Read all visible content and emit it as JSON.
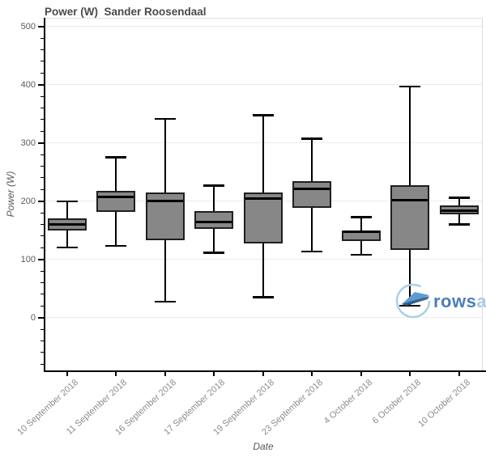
{
  "chart_data": {
    "type": "box",
    "title": "Power (W)  Sander Roosendaal",
    "xlabel": "Date",
    "ylabel": "Power (W)",
    "categories": [
      "10 September 2018",
      "11 September 2018",
      "16 September 2018",
      "17 September 2018",
      "19 September 2018",
      "23 September 2018",
      "4 October 2018",
      "6 October 2018",
      "10 October 2018"
    ],
    "boxes": [
      {
        "low": 120,
        "q1": 150,
        "median": 160,
        "q3": 171,
        "high": 200
      },
      {
        "low": 123,
        "q1": 182,
        "median": 208,
        "q3": 218,
        "high": 276
      },
      {
        "low": 27,
        "q1": 133,
        "median": 201,
        "q3": 215,
        "high": 342
      },
      {
        "low": 111,
        "q1": 152,
        "median": 164,
        "q3": 183,
        "high": 227
      },
      {
        "low": 35,
        "q1": 128,
        "median": 204,
        "q3": 215,
        "high": 348
      },
      {
        "low": 113,
        "q1": 188,
        "median": 221,
        "q3": 235,
        "high": 308
      },
      {
        "low": 108,
        "q1": 132,
        "median": 147,
        "q3": 150,
        "high": 173
      },
      {
        "low": 20,
        "q1": 116,
        "median": 202,
        "q3": 228,
        "high": 397
      },
      {
        "low": 160,
        "q1": 177,
        "median": 184,
        "q3": 193,
        "high": 206
      }
    ],
    "ylim": [
      -92,
      515
    ],
    "yticks": [
      0,
      100,
      200,
      300,
      400,
      500
    ],
    "minor_tick_step": 20,
    "grid": "horizontal",
    "legend": "none",
    "style": {
      "box_fill": "#878787",
      "box_border": "#1f1f1f",
      "median_color": "#000000",
      "whisker_color": "#000000",
      "gridline_color": "#ebebeb",
      "plot_border_color": "#dedede",
      "axis_color": "#000000",
      "title_color": "#4a4a4a",
      "ytick_color": "#595959",
      "xtick_color": "#8c8c8c"
    }
  },
  "watermark": {
    "name": "rowsandall-logo",
    "text_dark": "rows",
    "text_light": "ar",
    "color_dark": "#4d7cbb",
    "color_light": "#a9cae8",
    "circle_color": "#a9cfe8",
    "boat_color": "#5b9bd5",
    "boat_shadow_color": "#2a4d74"
  }
}
